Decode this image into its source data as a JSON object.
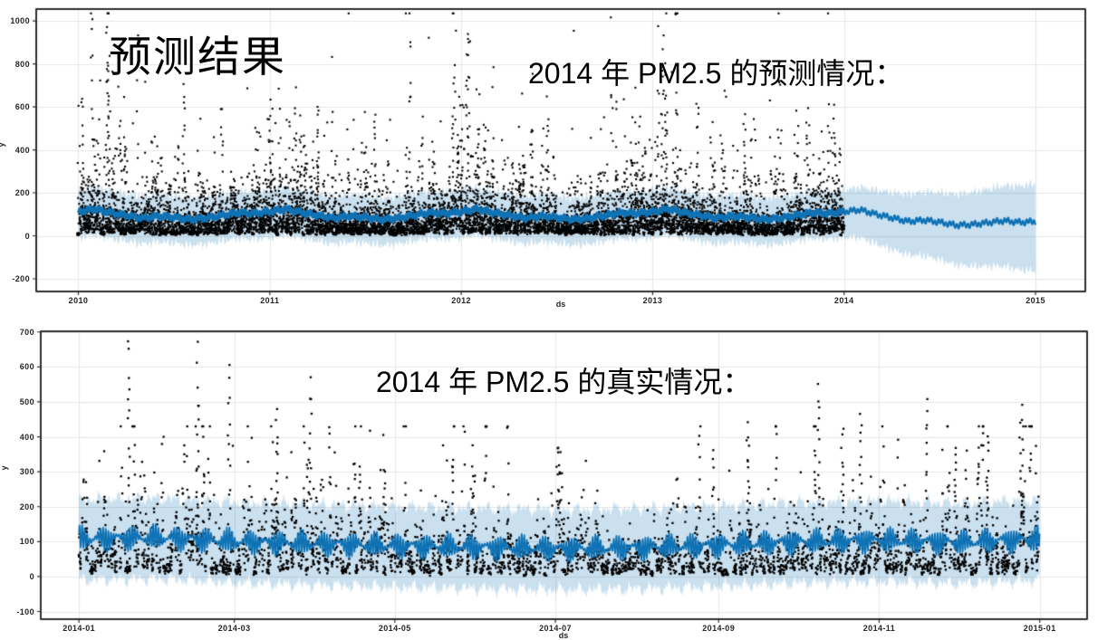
{
  "overlays": {
    "main_title": "预测结果",
    "prediction_caption": "2014 年 PM2.5 的预测情况：",
    "actual_caption": "2014 年 PM2.5 的真实情况："
  },
  "colors": {
    "background": "#ffffff",
    "grid": "#e6e6e6",
    "spine": "#2e2e2e",
    "tick_text": "#262626",
    "observations": "#000000",
    "forecast_line": "#0e72b5",
    "uncertainty_band": "rgba(14,114,181,0.22)"
  },
  "chart_data": [
    {
      "id": "pm25-forecast-2010-2015",
      "type": "scatter",
      "title": "",
      "xlabel": "ds",
      "ylabel": "y",
      "grid": true,
      "legend": "none",
      "x_unit": "year",
      "xlim": [
        2009.78,
        2015.26
      ],
      "ylim": [
        -259,
        1055
      ],
      "x_ticks": [
        {
          "v": 2010,
          "label": "2010"
        },
        {
          "v": 2011,
          "label": "2011"
        },
        {
          "v": 2012,
          "label": "2012"
        },
        {
          "v": 2013,
          "label": "2013"
        },
        {
          "v": 2014,
          "label": "2014"
        },
        {
          "v": 2015,
          "label": "2015"
        }
      ],
      "y_ticks": [
        -200,
        0,
        200,
        400,
        600,
        800,
        1000
      ],
      "series": [
        {
          "name": "observed-pm25-hourly",
          "style": "black-dot-scatter",
          "x_range": [
            2010.0,
            2014.0
          ],
          "typical_range": [
            0,
            250
          ],
          "max": 1000,
          "notable_peaks": [
            {
              "x": 2010.15,
              "y": 980
            },
            {
              "x": 2010.16,
              "y": 850
            },
            {
              "x": 2010.55,
              "y": 700
            },
            {
              "x": 2011.0,
              "y": 600
            },
            {
              "x": 2011.25,
              "y": 620
            },
            {
              "x": 2011.55,
              "y": 590
            },
            {
              "x": 2012.03,
              "y": 1000
            },
            {
              "x": 2012.04,
              "y": 950
            },
            {
              "x": 2012.45,
              "y": 600
            },
            {
              "x": 2013.05,
              "y": 900
            },
            {
              "x": 2013.07,
              "y": 640
            },
            {
              "x": 2013.48,
              "y": 560
            },
            {
              "x": 2013.95,
              "y": 580
            }
          ]
        },
        {
          "name": "yhat-forecast-line",
          "style": "blue-line",
          "x_range": [
            2010.0,
            2015.0
          ],
          "base": 90,
          "monthly_profile": [
            112,
            125,
            108,
            95,
            82,
            92,
            86,
            76,
            82,
            95,
            108,
            104
          ],
          "weekly_amplitude": 11,
          "forecast_trend_slope_per_year": -45,
          "forecast_end_value": 55
        },
        {
          "name": "uncertainty-interval",
          "style": "light-blue-band",
          "x_range": [
            2010.0,
            2015.0
          ],
          "in_sample_bounds": [
            -55,
            205
          ],
          "forecast_end_bounds": [
            -160,
            265
          ]
        }
      ]
    },
    {
      "id": "pm25-actual-2014",
      "type": "scatter",
      "title": "",
      "xlabel": "ds",
      "ylabel": "y",
      "grid": true,
      "legend": "none",
      "x_unit": "days-since-2014-01-01",
      "xlim": [
        -14.5,
        383
      ],
      "ylim": [
        -122,
        702
      ],
      "x_ticks": [
        {
          "v": 0,
          "label": "2014-01"
        },
        {
          "v": 59,
          "label": "2014-03"
        },
        {
          "v": 120,
          "label": "2014-05"
        },
        {
          "v": 181,
          "label": "2014-07"
        },
        {
          "v": 243,
          "label": "2014-09"
        },
        {
          "v": 304,
          "label": "2014-11"
        },
        {
          "v": 365,
          "label": "2015-01"
        }
      ],
      "y_ticks": [
        -100,
        0,
        100,
        200,
        300,
        400,
        500,
        600,
        700
      ],
      "series": [
        {
          "name": "observed-pm25-hourly-2014",
          "style": "black-dot-scatter",
          "x_range_days": [
            0,
            365
          ],
          "typical_range": [
            0,
            300
          ],
          "max": 670,
          "notable_peaks": [
            {
              "day": 19,
              "y": 670
            },
            {
              "day": 45,
              "y": 640
            },
            {
              "day": 57,
              "y": 590
            },
            {
              "day": 75,
              "y": 480
            },
            {
              "day": 88,
              "y": 550
            },
            {
              "day": 116,
              "y": 310
            },
            {
              "day": 150,
              "y": 300
            },
            {
              "day": 183,
              "y": 330
            },
            {
              "day": 254,
              "y": 430
            },
            {
              "day": 281,
              "y": 530
            },
            {
              "day": 290,
              "y": 420
            },
            {
              "day": 297,
              "y": 460
            },
            {
              "day": 322,
              "y": 500
            },
            {
              "day": 333,
              "y": 370
            },
            {
              "day": 345,
              "y": 390
            },
            {
              "day": 358,
              "y": 470
            }
          ]
        },
        {
          "name": "model-fit-line",
          "style": "blue-line",
          "base": 88,
          "monthly_profile": [
            108,
            112,
            100,
            94,
            88,
            84,
            80,
            83,
            90,
            100,
            104,
            98
          ],
          "daily_amplitude": 33,
          "weekly_amplitude": 8
        },
        {
          "name": "uncertainty-interval",
          "style": "light-blue-band",
          "bounds": [
            -28,
            210
          ]
        }
      ]
    }
  ]
}
